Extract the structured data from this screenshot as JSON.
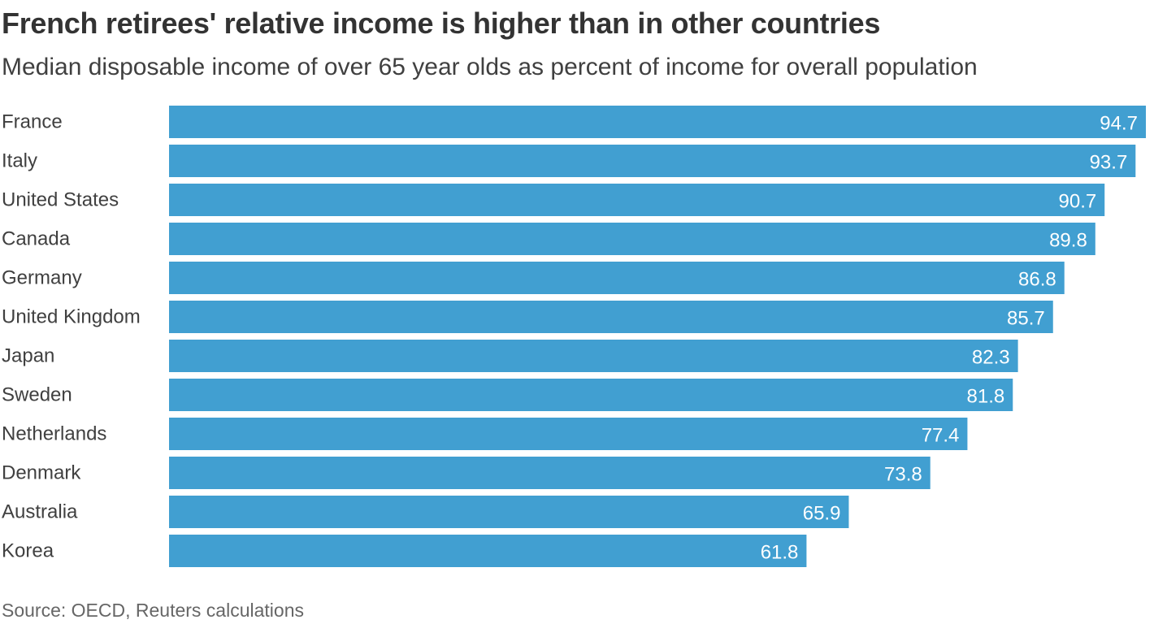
{
  "chart_data": {
    "type": "bar",
    "orientation": "horizontal",
    "title": "French retirees' relative income is higher than in other countries",
    "subtitle": "Median disposable income of over 65 year olds as percent of income for overall population",
    "categories": [
      "France",
      "Italy",
      "United States",
      "Canada",
      "Germany",
      "United Kingdom",
      "Japan",
      "Sweden",
      "Netherlands",
      "Denmark",
      "Australia",
      "Korea"
    ],
    "values": [
      94.7,
      93.7,
      90.7,
      89.8,
      86.8,
      85.7,
      82.3,
      81.8,
      77.4,
      73.8,
      65.9,
      61.8
    ],
    "value_labels": [
      "94.7",
      "93.7",
      "90.7",
      "89.8",
      "86.8",
      "85.7",
      "82.3",
      "81.8",
      "77.4",
      "73.8",
      "65.9",
      "61.8"
    ],
    "xlim": [
      0,
      94.7
    ],
    "grid": false,
    "legend": "none",
    "bar_color": "#419fd1",
    "source": "Source: OECD, Reuters calculations"
  }
}
